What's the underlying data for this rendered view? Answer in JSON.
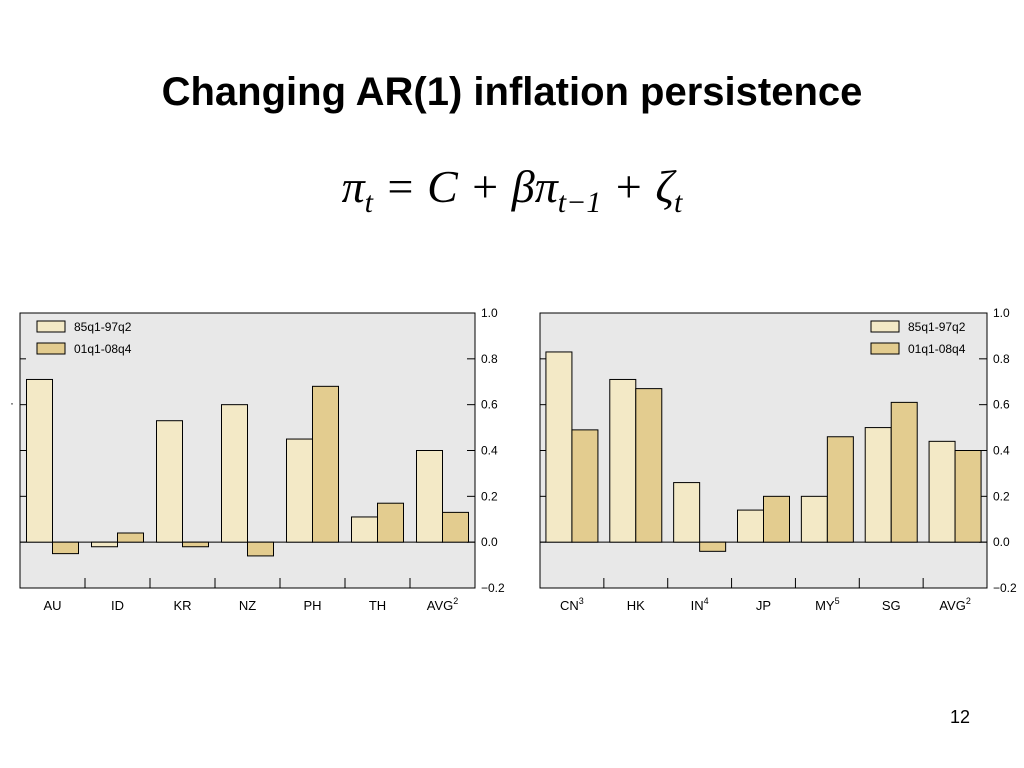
{
  "slide": {
    "title": "Changing AR(1) inflation persistence",
    "equation": {
      "pi": "π",
      "sub_t": "t",
      "eq": "=",
      "c": "C",
      "plus": "+",
      "beta": "β",
      "sub_t1": "t−1",
      "zeta": "ζ"
    },
    "page_number": "12",
    "dot": "·"
  },
  "colors": {
    "series1": "#f3e9c6",
    "series2": "#e3cc8f",
    "plot_bg": "#e8e8e8",
    "outline": "#000000"
  },
  "chart_data": [
    {
      "type": "bar",
      "categories": [
        "AU",
        "ID",
        "KR",
        "NZ",
        "PH",
        "TH",
        "AVG"
      ],
      "category_superscripts": [
        "",
        "",
        "",
        "",
        "",
        "",
        "2"
      ],
      "series": [
        {
          "name": "85q1-97q2",
          "values": [
            0.71,
            -0.02,
            0.53,
            0.6,
            0.45,
            0.11,
            0.4
          ]
        },
        {
          "name": "01q1-08q4",
          "values": [
            -0.05,
            0.04,
            -0.02,
            -0.06,
            0.68,
            0.17,
            0.13
          ]
        }
      ],
      "ylim": [
        -0.2,
        1.0
      ],
      "yticks": [
        -0.2,
        0.0,
        0.2,
        0.4,
        0.6,
        0.8,
        1.0
      ],
      "ytick_labels": [
        "−0.2",
        "0.0",
        "0.2",
        "0.4",
        "0.6",
        "0.8",
        "1.0"
      ],
      "yaxis_side": "right",
      "legend_position": "top-left",
      "grid": false
    },
    {
      "type": "bar",
      "categories": [
        "CN",
        "HK",
        "IN",
        "JP",
        "MY",
        "SG",
        "AVG"
      ],
      "category_superscripts": [
        "3",
        "",
        "4",
        "",
        "5",
        "",
        "2"
      ],
      "series": [
        {
          "name": "85q1-97q2",
          "values": [
            0.83,
            0.71,
            0.26,
            0.14,
            0.2,
            0.5,
            0.44
          ]
        },
        {
          "name": "01q1-08q4",
          "values": [
            0.49,
            0.67,
            -0.04,
            0.2,
            0.46,
            0.61,
            0.4
          ]
        }
      ],
      "ylim": [
        -0.2,
        1.0
      ],
      "yticks": [
        -0.2,
        0.0,
        0.2,
        0.4,
        0.6,
        0.8,
        1.0
      ],
      "ytick_labels": [
        "−0.2",
        "0.0",
        "0.2",
        "0.4",
        "0.6",
        "0.8",
        "1.0"
      ],
      "yaxis_side": "right",
      "legend_position": "top-right",
      "grid": false
    }
  ]
}
